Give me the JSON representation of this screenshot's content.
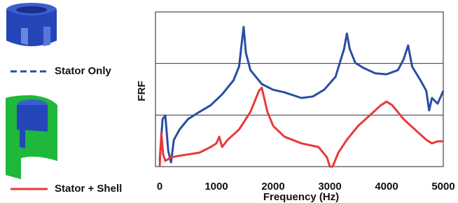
{
  "chart_data": {
    "type": "line",
    "x_label": "Frequency  (Hz)",
    "y_label": "FRF",
    "xlim": [
      0,
      5000
    ],
    "xticks": [
      0,
      1000,
      2000,
      3000,
      4000,
      5000
    ],
    "ylim": [
      0,
      3
    ],
    "yticks": [
      1,
      2
    ],
    "show_ytick_labels": false,
    "grid": true,
    "series": [
      {
        "name": "Stator Only",
        "color": "#2a4da3",
        "x": [
          0,
          50,
          100,
          150,
          200,
          250,
          350,
          500,
          700,
          900,
          1100,
          1300,
          1400,
          1450,
          1480,
          1520,
          1600,
          1800,
          2000,
          2200,
          2500,
          2700,
          2900,
          3100,
          3250,
          3300,
          3350,
          3450,
          3600,
          3800,
          4000,
          4200,
          4300,
          4380,
          4450,
          4600,
          4700,
          4750,
          4800,
          4900,
          5000
        ],
        "values": [
          0.11,
          0.92,
          0.99,
          0.31,
          0.08,
          0.52,
          0.72,
          0.92,
          1.06,
          1.19,
          1.4,
          1.67,
          1.94,
          2.42,
          2.71,
          2.21,
          1.87,
          1.6,
          1.49,
          1.44,
          1.33,
          1.36,
          1.49,
          1.74,
          2.28,
          2.58,
          2.28,
          2.01,
          1.91,
          1.81,
          1.79,
          1.87,
          2.08,
          2.35,
          1.94,
          1.67,
          1.47,
          1.09,
          1.33,
          1.22,
          1.47
        ]
      },
      {
        "name": "Stator + Shell",
        "color": "#e63a3a",
        "x": [
          0,
          30,
          60,
          100,
          200,
          400,
          700,
          900,
          1000,
          1050,
          1100,
          1200,
          1400,
          1600,
          1750,
          1800,
          1900,
          2000,
          2200,
          2500,
          2800,
          2950,
          3000,
          3050,
          3150,
          3300,
          3500,
          3700,
          3900,
          4000,
          4100,
          4300,
          4500,
          4700,
          4800,
          4900,
          5000
        ],
        "values": [
          0,
          0.65,
          0.24,
          0.11,
          0.18,
          0.22,
          0.27,
          0.38,
          0.45,
          0.58,
          0.38,
          0.52,
          0.72,
          1.06,
          1.47,
          1.53,
          1.06,
          0.79,
          0.58,
          0.45,
          0.38,
          0.18,
          0,
          0,
          0.27,
          0.52,
          0.79,
          0.99,
          1.19,
          1.26,
          1.19,
          0.92,
          0.72,
          0.52,
          0.45,
          0.49,
          0.49
        ]
      }
    ]
  }
}
